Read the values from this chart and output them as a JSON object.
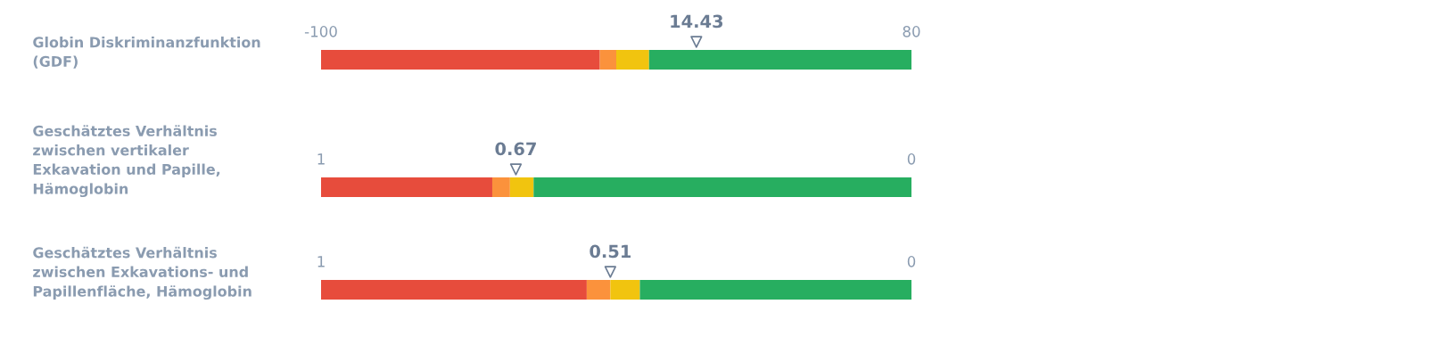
{
  "chart_data": [
    {
      "type": "bar",
      "orientation": "horizontal",
      "categories": [
        "Globin Diskriminanzfunktion\n(GDF)"
      ],
      "xlim": [
        -100,
        80
      ],
      "xticks": [
        -100,
        80
      ],
      "grid": false,
      "legend": false,
      "series": [
        {
          "color": "#e74c3c",
          "values": [
            85
          ],
          "base": [
            -100
          ]
        },
        {
          "color": "#fb923c",
          "values": [
            5
          ],
          "base": [
            -15
          ]
        },
        {
          "color": "#f1c40f",
          "values": [
            10
          ],
          "base": [
            -10
          ]
        },
        {
          "color": "#27ae60",
          "values": [
            80
          ],
          "base": [
            0
          ]
        },
        {
          "type": "scatter",
          "color": "#6b7c93",
          "values": [
            14.43
          ],
          "value_labels": [
            "14.43"
          ]
        }
      ],
      "marker": "triangle"
    },
    {
      "type": "bar",
      "orientation": "horizontal",
      "categories": [
        "Geschätztes Verhältnis\nzwischen vertikaler\nExkavation und Papille,\nHämoglobin"
      ],
      "xlim": [
        1,
        0
      ],
      "xticks": [
        1,
        0
      ],
      "grid": false,
      "legend": false,
      "series": [
        {
          "color": "#e74c3c",
          "values": [
            0.29
          ],
          "base": [
            0.71
          ]
        },
        {
          "color": "#fb923c",
          "values": [
            0.03
          ],
          "base": [
            0.68
          ]
        },
        {
          "color": "#f1c40f",
          "values": [
            0.04
          ],
          "base": [
            0.64
          ]
        },
        {
          "color": "#27ae60",
          "values": [
            0.64
          ],
          "base": [
            0
          ]
        },
        {
          "type": "scatter",
          "color": "#6b7c93",
          "values": [
            0.67
          ],
          "value_labels": [
            "0.67"
          ]
        }
      ],
      "marker": "triangle"
    },
    {
      "type": "bar",
      "orientation": "horizontal",
      "categories": [
        "Geschätztes Verhältnis\nzwischen Exkavations- und\nPapillenfläche, Hämoglobin"
      ],
      "xlim": [
        1,
        0
      ],
      "xticks": [
        1,
        0
      ],
      "grid": false,
      "legend": false,
      "series": [
        {
          "color": "#e74c3c",
          "values": [
            0.45
          ],
          "base": [
            0.55
          ]
        },
        {
          "color": "#fb923c",
          "values": [
            0.04
          ],
          "base": [
            0.51
          ]
        },
        {
          "color": "#f1c40f",
          "values": [
            0.05
          ],
          "base": [
            0.46
          ]
        },
        {
          "color": "#27ae60",
          "values": [
            0.46
          ],
          "base": [
            0
          ]
        },
        {
          "type": "scatter",
          "color": "#6b7c93",
          "values": [
            0.51
          ],
          "value_labels": [
            "0.51"
          ]
        }
      ],
      "marker": "triangle"
    }
  ]
}
